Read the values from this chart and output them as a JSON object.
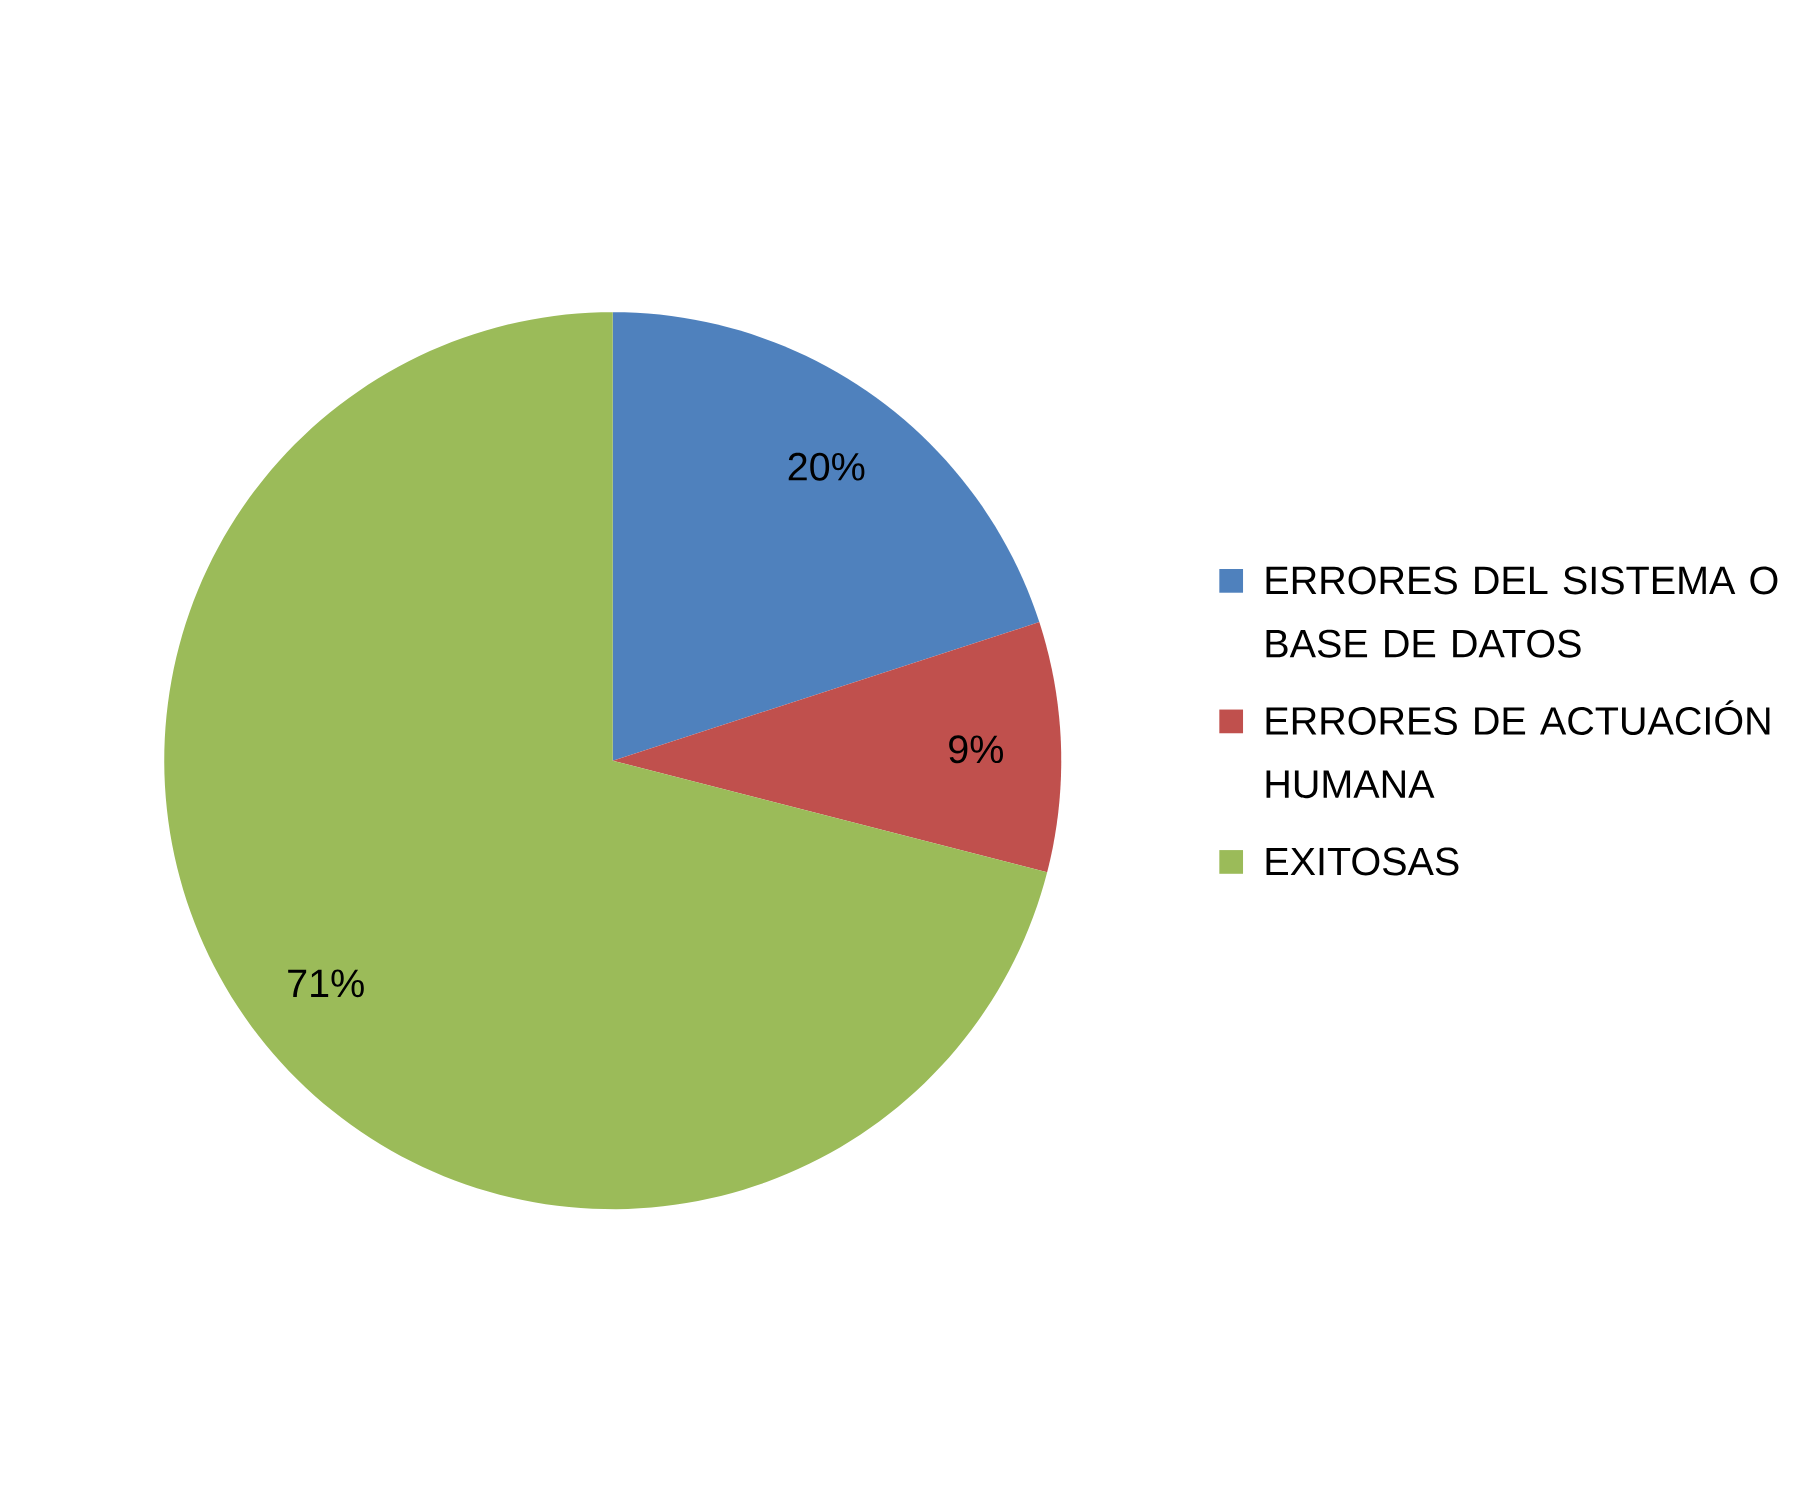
{
  "chart_data": {
    "type": "pie",
    "categories": [
      "ERRORES DEL SISTEMA O BASE DE DATOS",
      "ERRORES DE ACTUACIÓN HUMANA",
      "EXITOSAS"
    ],
    "values": [
      20,
      9,
      71
    ],
    "colors": [
      "#4f81bd",
      "#c0504d",
      "#9bbb59"
    ],
    "value_labels": [
      "20%",
      "9%",
      "71%"
    ],
    "legend": "right"
  }
}
